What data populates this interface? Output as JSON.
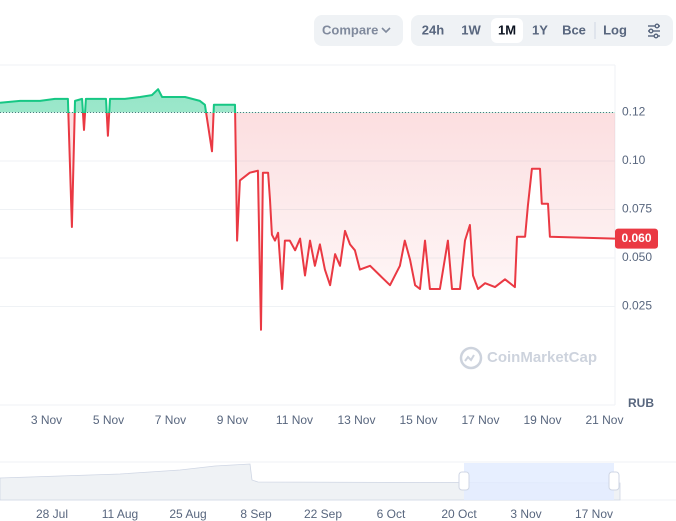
{
  "toolbar": {
    "compare": "Compare",
    "ranges": [
      "24h",
      "1W",
      "1M",
      "1Y",
      "Все"
    ],
    "active_range": 2,
    "log": "Log"
  },
  "chart_data": {
    "type": "line",
    "x": [
      1.5,
      2.15,
      2.79,
      3.27,
      3.69,
      3.82,
      3.92,
      4.15,
      4.21,
      4.27,
      4.73,
      4.92,
      4.98,
      5.05,
      5.53,
      6.02,
      6.4,
      6.6,
      6.73,
      7.47,
      7.95,
      8.11,
      8.34,
      8.4,
      8.76,
      9.08,
      9.15,
      9.24,
      9.56,
      9.82,
      9.92,
      9.98,
      10.15,
      10.21,
      10.27,
      10.37,
      10.47,
      10.6,
      10.69,
      10.85,
      11.02,
      11.18,
      11.34,
      11.5,
      11.66,
      11.82,
      11.98,
      12.15,
      12.31,
      12.47,
      12.63,
      12.79,
      12.95,
      13.11,
      13.44,
      13.76,
      14.08,
      14.4,
      14.56,
      14.73,
      14.89,
      15.05,
      15.21,
      15.37,
      15.69,
      15.95,
      16.08,
      16.34,
      16.5,
      16.66,
      16.76,
      16.92,
      17.15,
      17.47,
      17.79,
      18.11,
      18.18,
      18.44,
      18.53,
      18.66,
      18.92,
      18.98,
      19.18,
      19.24,
      21.34
    ],
    "values": [
      0.13,
      0.131,
      0.131,
      0.132,
      0.132,
      0.066,
      0.131,
      0.132,
      0.116,
      0.132,
      0.132,
      0.132,
      0.113,
      0.132,
      0.132,
      0.133,
      0.134,
      0.137,
      0.133,
      0.133,
      0.131,
      0.129,
      0.105,
      0.129,
      0.129,
      0.129,
      0.059,
      0.09,
      0.094,
      0.095,
      0.013,
      0.094,
      0.094,
      0.08,
      0.062,
      0.059,
      0.063,
      0.034,
      0.059,
      0.059,
      0.054,
      0.06,
      0.041,
      0.059,
      0.046,
      0.057,
      0.044,
      0.036,
      0.052,
      0.046,
      0.064,
      0.057,
      0.054,
      0.044,
      0.046,
      0.041,
      0.036,
      0.046,
      0.059,
      0.049,
      0.036,
      0.034,
      0.059,
      0.034,
      0.034,
      0.059,
      0.034,
      0.034,
      0.059,
      0.067,
      0.041,
      0.034,
      0.037,
      0.035,
      0.039,
      0.035,
      0.061,
      0.061,
      0.077,
      0.096,
      0.096,
      0.078,
      0.078,
      0.061,
      0.06
    ],
    "color_above": "#16c784",
    "color_below": "#ea3943",
    "reference_line": 0.125,
    "xlim": [
      1.5,
      21.34
    ],
    "xticks": [
      {
        "value": 3,
        "label": "3 Nov"
      },
      {
        "value": 5,
        "label": "5 Nov"
      },
      {
        "value": 7,
        "label": "7 Nov"
      },
      {
        "value": 9,
        "label": "9 Nov"
      },
      {
        "value": 11,
        "label": "11 Nov"
      },
      {
        "value": 13,
        "label": "13 Nov"
      },
      {
        "value": 15,
        "label": "15 Nov"
      },
      {
        "value": 17,
        "label": "17 Nov"
      },
      {
        "value": 19,
        "label": "19 Nov"
      },
      {
        "value": 21,
        "label": "21 Nov"
      }
    ],
    "ylim": [
      0,
      0.1495
    ],
    "yticks": [
      0.025,
      {
        "value": 0.05,
        "label": "0.050"
      },
      0.075,
      {
        "value": 0.1,
        "label": "0.10"
      },
      {
        "value": 0.125,
        "label": "0.12"
      }
    ],
    "grid": true,
    "current_price": {
      "value": 0.06,
      "label": "0.060"
    },
    "currency": "RUB",
    "watermark": "CoinMarketCap"
  },
  "navigator": {
    "labels": [
      "28 Jul",
      "11 Aug",
      "25 Aug",
      "8 Sep",
      "22 Sep",
      "6 Oct",
      "20 Oct",
      "3 Nov",
      "17 Nov"
    ]
  }
}
